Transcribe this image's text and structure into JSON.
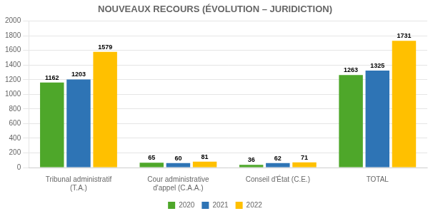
{
  "chart_data": {
    "type": "bar",
    "title": "NOUVEAUX RECOURS (ÉVOLUTION – JURIDICTION)",
    "categories": [
      "Tribunal administratif\n(T.A.)",
      "Cour administrative\nd'appel (C.A.A.)",
      "Conseil d'État (C.E.)",
      "TOTAL"
    ],
    "series": [
      {
        "name": "2020",
        "color": "#4EA72A",
        "values": [
          1162,
          65,
          36,
          1263
        ]
      },
      {
        "name": "2021",
        "color": "#2E74B5",
        "values": [
          1203,
          60,
          62,
          1325
        ]
      },
      {
        "name": "2022",
        "color": "#FFC000",
        "values": [
          1579,
          81,
          71,
          1731
        ]
      }
    ],
    "ylim": [
      0,
      2000
    ],
    "yticks": [
      0,
      200,
      400,
      600,
      800,
      1000,
      1200,
      1400,
      1600,
      1800,
      2000
    ],
    "grid": true,
    "legend": "bottom",
    "data_labels": true
  }
}
